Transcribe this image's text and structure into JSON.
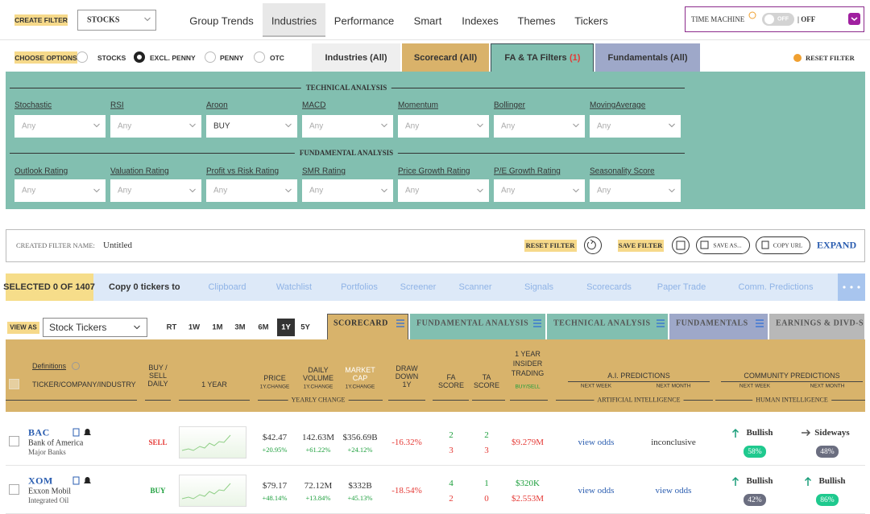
{
  "top_bar": {
    "create_filter": "CREATE FILTER",
    "asset_select": "STOCKS",
    "nav": [
      "Group Trends",
      "Industries",
      "Performance",
      "Smart",
      "Indexes",
      "Themes",
      "Tickers"
    ],
    "time_machine": "TIME MACHINE",
    "toggle": "OFF",
    "status": "| OFF"
  },
  "options": {
    "label": "CHOOSE OPTIONS",
    "radios": [
      "STOCKS",
      "EXCL. PENNY",
      "PENNY",
      "OTC"
    ],
    "tabs": [
      "Industries (All)",
      "Scorecard (All)",
      "FA & TA Filters",
      "Fundamentals (All)"
    ],
    "filter_count": "(1)",
    "reset": "RESET FILTER"
  },
  "filters": {
    "technical": {
      "title": "TECHNICAL ANALYSIS",
      "items": [
        {
          "label": "Stochastic",
          "value": "Any"
        },
        {
          "label": "RSI",
          "value": "Any"
        },
        {
          "label": "Aroon",
          "value": "BUY"
        },
        {
          "label": "MACD",
          "value": "Any"
        },
        {
          "label": "Momentum",
          "value": "Any"
        },
        {
          "label": "Bollinger",
          "value": "Any"
        },
        {
          "label": "MovingAverage",
          "value": "Any"
        }
      ]
    },
    "fundamental": {
      "title": "FUNDAMENTAL ANALYSIS",
      "items": [
        {
          "label": "Outlook Rating",
          "value": "Any"
        },
        {
          "label": "Valuation Rating",
          "value": "Any"
        },
        {
          "label": "Profit vs Risk Rating",
          "value": "Any"
        },
        {
          "label": "SMR Rating",
          "value": "Any"
        },
        {
          "label": "Price Growth Rating",
          "value": "Any"
        },
        {
          "label": "P/E Growth Rating",
          "value": "Any"
        },
        {
          "label": "Seasonality Score",
          "value": "Any"
        }
      ]
    }
  },
  "filter_name": {
    "label": "CREATED FILTER NAME:",
    "name": "Untitled",
    "reset": "RESET FILTER",
    "save": "SAVE FILTER",
    "save_as": "SAVE AS...",
    "copy_url": "COPY URL",
    "expand": "EXPAND"
  },
  "selection": {
    "selected": "SELECTED 0 OF 1407",
    "copy": "Copy 0 tickers to",
    "targets": [
      "Clipboard",
      "Watchlist",
      "Portfolios",
      "Screener",
      "Scanner",
      "Signals",
      "Scorecards",
      "Paper Trade",
      "Comm. Predictions"
    ]
  },
  "view": {
    "label": "VIEW AS",
    "select": "Stock Tickers",
    "periods": [
      "RT",
      "1W",
      "1M",
      "3M",
      "6M",
      "1Y",
      "5Y"
    ],
    "tabs": [
      "SCORECARD",
      "FUNDAMENTAL ANALYSIS",
      "TECHNICAL ANALYSIS",
      "FUNDAMENTALS",
      "EARNINGS & DIVD-S"
    ]
  },
  "table": {
    "header": {
      "definitions": "Definitions",
      "ticker": "TICKER/COMPANY/INDUSTRY",
      "signal": "BUY / SELL DAILY",
      "chart": "1 YEAR",
      "price": "PRICE",
      "price_sub": "1Y.CHANGE",
      "volume": "DAILY VOLUME",
      "volume_sub": "1Y.CHANGE",
      "cap": "MARKET CAP",
      "cap_sub": "1Y.CHANGE",
      "yearly": "YEARLY CHANGE",
      "drawdown": "DRAW DOWN 1Y",
      "fa": "FA SCORE",
      "ta": "TA SCORE",
      "insider": "1 YEAR INSIDER TRADING",
      "insider_sub": "BUY/SELL",
      "ai": "A.I. PREDICTIONS",
      "ai_week": "NEXT WEEK",
      "ai_month": "NEXT MONTH",
      "ai_group": "ARTIFICIAL INTELLIGENCE",
      "community": "COMMUNITY PREDICTIONS",
      "c_week": "NEXT WEEK",
      "c_month": "NEXT MONTH",
      "c_group": "HUMAN INTELLIGENCE"
    },
    "rows": [
      {
        "ticker": "BAC",
        "company": "Bank of America",
        "industry": "Major Banks",
        "signal": "SELL",
        "signal_color": "#e53935",
        "price": "$42.47",
        "price_change": "+20.95%",
        "volume": "142.63M",
        "volume_change": "+61.22%",
        "market_cap": "$356.69B",
        "market_cap_change": "+24.12%",
        "drawdown": "-16.32%",
        "fa_score": [
          2,
          3
        ],
        "ta_score": [
          2,
          3
        ],
        "insider_sell": "$9.279M",
        "ai_week": "view odds",
        "ai_week_color": "#2a5db0",
        "ai_month": "inconclusive",
        "ai_month_color": "#333333",
        "community_week": {
          "label": "Bullish",
          "arrow": "up",
          "percent": "58%",
          "color": "#1fc98e"
        },
        "community_month": {
          "label": "Sideways",
          "arrow": "right",
          "percent": "48%",
          "color": "#6b6e80"
        }
      },
      {
        "ticker": "XOM",
        "company": "Exxon Mobil",
        "industry": "Integrated Oil",
        "signal": "BUY",
        "signal_color": "#1a9e3a",
        "price": "$79.17",
        "price_change": "+48.14%",
        "volume": "72.12M",
        "volume_change": "+13.84%",
        "market_cap": "$332B",
        "market_cap_change": "+45.13%",
        "drawdown": "-18.54%",
        "fa_score": [
          4,
          2
        ],
        "ta_score": [
          1,
          0
        ],
        "insider_buy": "$320K",
        "insider_sell": "$2.553M",
        "ai_week": "view odds",
        "ai_week_color": "#2a5db0",
        "ai_month": "view odds",
        "ai_month_color": "#2a5db0",
        "community_week": {
          "label": "Bullish",
          "arrow": "up",
          "percent": "42%",
          "color": "#6b6e80"
        },
        "community_month": {
          "label": "Bullish",
          "arrow": "up",
          "percent": "86%",
          "color": "#1fc98e"
        }
      }
    ]
  }
}
